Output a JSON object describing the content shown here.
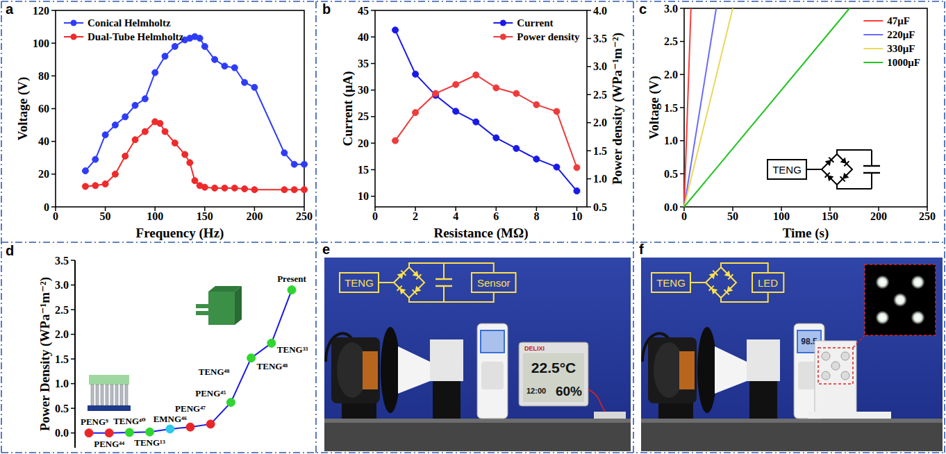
{
  "chart_data": [
    {
      "panel": "a",
      "type": "line",
      "x_label": "Frequency (Hz)",
      "y_label": "Voltage (V)",
      "xlim": [
        0,
        250
      ],
      "xticks": [
        0,
        50,
        100,
        150,
        200,
        250
      ],
      "ylim": [
        0,
        120
      ],
      "yticks": [
        0,
        20,
        40,
        60,
        80,
        100,
        120
      ],
      "legend": "upper left",
      "marker": "circle",
      "series": [
        {
          "name": "Conical Helmholtz",
          "color": "#2e3df5",
          "x": [
            30,
            40,
            50,
            60,
            70,
            80,
            90,
            100,
            110,
            120,
            130,
            135,
            140,
            145,
            150,
            160,
            170,
            180,
            190,
            200,
            230,
            240,
            250
          ],
          "values": [
            22,
            29,
            44,
            50,
            55,
            62,
            66,
            82,
            92,
            98,
            102,
            103,
            104,
            103,
            98,
            90,
            86,
            85,
            76,
            73,
            33,
            26,
            26
          ]
        },
        {
          "name": "Dual-Tube Helmholtz",
          "color": "#ee2a2a",
          "x": [
            30,
            40,
            50,
            60,
            70,
            80,
            90,
            100,
            105,
            110,
            120,
            130,
            135,
            140,
            145,
            150,
            160,
            170,
            180,
            190,
            200,
            230,
            240,
            250
          ],
          "values": [
            12.5,
            13,
            14,
            20,
            31,
            41,
            46,
            52,
            51,
            46,
            39,
            32,
            27,
            16,
            13,
            12,
            11.5,
            11.5,
            11.5,
            11,
            10.5,
            10.5,
            10.5,
            10.5
          ]
        }
      ]
    },
    {
      "panel": "b",
      "type": "line",
      "x_label": "Resistance (MΩ)",
      "y_label": "Current (μA)",
      "y2_label": "Power density (WPa⁻¹m⁻²)",
      "xlim": [
        0,
        10.5
      ],
      "xticks": [
        0,
        2,
        4,
        6,
        8,
        10
      ],
      "ylim": [
        8,
        45
      ],
      "yticks": [
        10,
        15,
        20,
        25,
        30,
        35,
        40,
        45
      ],
      "y2lim": [
        0.5,
        4.0
      ],
      "y2ticks": [
        0.5,
        {
          "value": 1.0,
          "label": "1.0"
        },
        1.5,
        {
          "value": 2.0,
          "label": "2.0"
        },
        2.5,
        {
          "value": 3.0,
          "label": "3.0"
        },
        3.5,
        {
          "value": 4.0,
          "label": "4.0"
        }
      ],
      "legend": "upper right",
      "marker": "circle",
      "x": [
        1,
        2,
        3,
        4,
        5,
        6,
        7,
        8,
        9,
        10
      ],
      "series": [
        {
          "name": "Current",
          "color": "#1a1ae6",
          "values": [
            41.3,
            33,
            29,
            26,
            24,
            21,
            19,
            17,
            15.5,
            11
          ]
        },
        {
          "name": "Power density",
          "color": "#ee3b3b",
          "axis": "y2",
          "values": [
            1.68,
            2.18,
            2.52,
            2.68,
            2.85,
            2.62,
            2.52,
            2.32,
            2.2,
            1.2
          ]
        }
      ]
    },
    {
      "panel": "c",
      "type": "line",
      "x_label": "Time (s)",
      "y_label": "Voltage (V)",
      "xlim": [
        0,
        250
      ],
      "xticks": [
        0,
        50,
        100,
        150,
        200,
        250
      ],
      "ylim": [
        0,
        3.0
      ],
      "yticks": [
        {
          "value": 0,
          "label": "0.0"
        },
        0.5,
        {
          "value": 1.0,
          "label": "1.0"
        },
        1.5,
        {
          "value": 2.0,
          "label": "2.0"
        },
        2.5,
        {
          "value": 3.0,
          "label": "3.0"
        }
      ],
      "legend": "upper right",
      "marker": "none",
      "annotations": [
        "TENG"
      ],
      "series": [
        {
          "name": "47μF",
          "color": "#ff3b3b",
          "x": [
            0,
            7
          ],
          "values": [
            0,
            3.0
          ]
        },
        {
          "name": "220μF",
          "color": "#6b6bff",
          "x": [
            0,
            33
          ],
          "values": [
            0,
            3.0
          ]
        },
        {
          "name": "330μF",
          "color": "#e8d85a",
          "x": [
            0,
            50
          ],
          "values": [
            0,
            3.0
          ]
        },
        {
          "name": "1000μF",
          "color": "#22c422",
          "x": [
            0,
            170
          ],
          "values": [
            0,
            3.0
          ]
        }
      ]
    },
    {
      "panel": "d",
      "type": "line",
      "y_label": "Power Density (WPa⁻¹m⁻²)",
      "ylim": [
        -0.3,
        3.5
      ],
      "yticks": [
        {
          "value": 0,
          "label": "0.0"
        },
        0.5,
        {
          "value": 1.0,
          "label": "1.0"
        },
        1.5,
        {
          "value": 2.0,
          "label": "2.0"
        },
        2.5,
        {
          "value": 3.0,
          "label": "3.0"
        },
        3.5
      ],
      "tick_labels": "y",
      "marker": "circle",
      "color": "#1a1ae6",
      "categories": [
        "PENG⁹",
        "PENG⁴⁴",
        "TENG⁴⁰",
        "TENG¹³",
        "EMNG⁴⁶",
        "PENG⁴⁷",
        "PENG⁴⁵",
        "TENG⁴⁸",
        "TENG⁴⁸",
        "TENG³³",
        "Present"
      ],
      "values": [
        0,
        0,
        0.01,
        0.02,
        0.08,
        0.12,
        0.18,
        0.62,
        1.52,
        1.82,
        2.9
      ],
      "colors": [
        "#e8262a",
        "#e8262a",
        "#2fd62f",
        "#2fd62f",
        "#2ec8e8",
        "#e8262a",
        "#e8262a",
        "#2fd62f",
        "#2fd62f",
        "#2fd62f",
        "#2fd62f"
      ]
    }
  ],
  "photos": [
    {
      "panel": "e",
      "circuit": [
        "TENG",
        "Sensor"
      ],
      "displays": [
        "22.5°C",
        "12:00",
        "60%",
        "DELIXI"
      ]
    },
    {
      "panel": "f",
      "circuit": [
        "TENG",
        "LED"
      ],
      "displays": [
        "98.5"
      ]
    }
  ]
}
